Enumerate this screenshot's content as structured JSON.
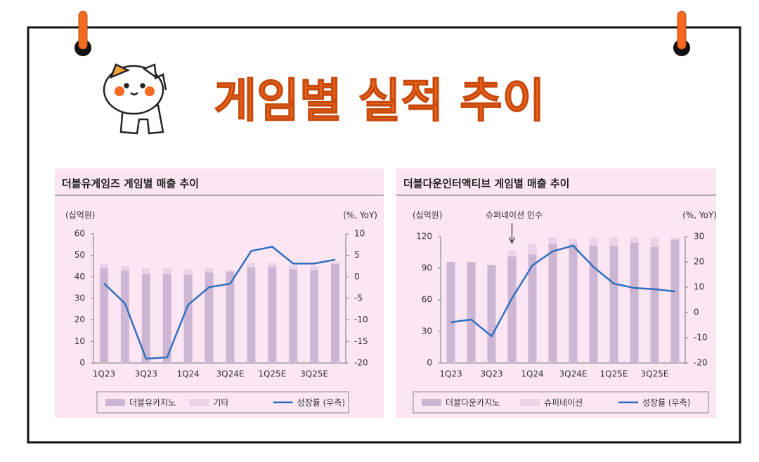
{
  "header": {
    "title": "게임별 실적 추이"
  },
  "chart_data": [
    {
      "type": "bar",
      "title": "더블유게임즈 게임별 매출 추이",
      "y_label": "(십억원)",
      "y2_label": "(%, YoY)",
      "categories": [
        "1Q23",
        null,
        "3Q23",
        null,
        "1Q24",
        null,
        "3Q24E",
        null,
        "1Q25E",
        null,
        "3Q25E",
        null
      ],
      "stacked": true,
      "series": [
        {
          "name": "더블유카지노",
          "type": "bar",
          "color": "#cdb6d3",
          "values": [
            44,
            43,
            41.5,
            41.5,
            41,
            42,
            42.5,
            44.5,
            44.5,
            43.5,
            43,
            46
          ]
        },
        {
          "name": "기타",
          "type": "bar",
          "color": "#ead3e6",
          "values": [
            2,
            2,
            2.5,
            2.5,
            2.5,
            2,
            0.5,
            2,
            2,
            2,
            2,
            1
          ]
        },
        {
          "name": "성장률 (우측)",
          "type": "line",
          "axis": "y2",
          "color": "#2f6fbf",
          "values": [
            -1.5,
            -6.2,
            -19,
            -18.7,
            -6.5,
            -2.4,
            -1.6,
            6,
            7,
            3.1,
            3.1,
            4
          ]
        }
      ],
      "ylim": [
        0,
        60
      ],
      "yticks": [
        0,
        10,
        20,
        30,
        40,
        50,
        60
      ],
      "y2lim": [
        -20,
        10
      ],
      "y2ticks": [
        -20,
        -15,
        -10,
        -5,
        0,
        5,
        10
      ]
    },
    {
      "type": "bar",
      "title": "더블다운인터액티브 게임별 매출 추이",
      "y_label": "(십억원)",
      "y2_label": "(%, YoY)",
      "annotation": "슈퍼네이션 인수",
      "categories": [
        "1Q23",
        null,
        "3Q23",
        null,
        "1Q24",
        null,
        "3Q24E",
        null,
        "1Q25E",
        null,
        "3Q25E",
        null
      ],
      "stacked": true,
      "series": [
        {
          "name": "더블다운카지노",
          "type": "bar",
          "color": "#cdb6d3",
          "values": [
            96,
            96,
            93,
            101,
            103,
            113,
            113,
            111,
            111,
            114,
            110,
            117
          ]
        },
        {
          "name": "슈퍼네이션",
          "type": "bar",
          "color": "#ead3e6",
          "values": [
            0,
            0,
            0,
            6,
            10,
            6,
            5,
            8,
            8,
            6,
            9,
            2
          ]
        },
        {
          "name": "성장률 (우측)",
          "type": "line",
          "axis": "y2",
          "color": "#2f6fbf",
          "values": [
            -3.9,
            -2.8,
            -9.4,
            5.6,
            18.6,
            24.2,
            26.4,
            18,
            11.4,
            9.7,
            9.2,
            8.3
          ]
        }
      ],
      "ylim": [
        0,
        120
      ],
      "yticks": [
        0,
        30,
        60,
        90,
        120
      ],
      "y2lim": [
        -20,
        30
      ],
      "y2ticks": [
        -20,
        -10,
        0,
        10,
        20,
        30
      ]
    }
  ]
}
